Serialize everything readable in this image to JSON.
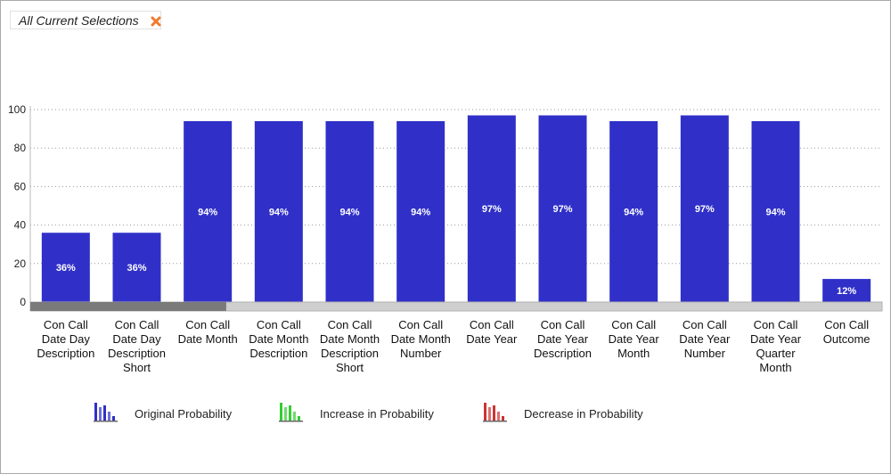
{
  "selection_tab": {
    "label": "All Current Selections",
    "close_icon": "close-icon"
  },
  "chart_data": {
    "type": "bar",
    "title": "",
    "xlabel": "",
    "ylabel": "",
    "ylim": [
      0,
      100
    ],
    "yticks": [
      0,
      20,
      40,
      60,
      80,
      100
    ],
    "grid": "horizontal-dotted",
    "bar_color": "#3030c8",
    "categories": [
      [
        "Con Call",
        "Date Day",
        "Description"
      ],
      [
        "Con Call",
        "Date Day",
        "Description",
        "Short"
      ],
      [
        "Con Call",
        "Date Month"
      ],
      [
        "Con Call",
        "Date Month",
        "Description"
      ],
      [
        "Con Call",
        "Date Month",
        "Description",
        "Short"
      ],
      [
        "Con Call",
        "Date Month",
        "Number"
      ],
      [
        "Con Call",
        "Date Year"
      ],
      [
        "Con Call",
        "Date Year",
        "Description"
      ],
      [
        "Con Call",
        "Date Year",
        "Month"
      ],
      [
        "Con Call",
        "Date Year",
        "Number"
      ],
      [
        "Con Call",
        "Date Year",
        "Quarter",
        "Month"
      ],
      [
        "Con Call",
        "Outcome"
      ]
    ],
    "values": [
      36,
      36,
      94,
      94,
      94,
      94,
      97,
      97,
      94,
      97,
      94,
      12
    ],
    "data_labels": [
      "36%",
      "36%",
      "94%",
      "94%",
      "94%",
      "94%",
      "97%",
      "97%",
      "94%",
      "97%",
      "94%",
      "12%"
    ],
    "scrollbar_visible_fraction": 0.23,
    "legend_position": "bottom-left",
    "legend": [
      {
        "label": "Original Probability",
        "color": "#3030c8",
        "icon": "bar-chart-icon"
      },
      {
        "label": "Increase in Probability",
        "color": "#33cc33",
        "icon": "bar-chart-icon"
      },
      {
        "label": "Decrease in Probability",
        "color": "#cc3333",
        "icon": "bar-chart-icon"
      }
    ]
  }
}
